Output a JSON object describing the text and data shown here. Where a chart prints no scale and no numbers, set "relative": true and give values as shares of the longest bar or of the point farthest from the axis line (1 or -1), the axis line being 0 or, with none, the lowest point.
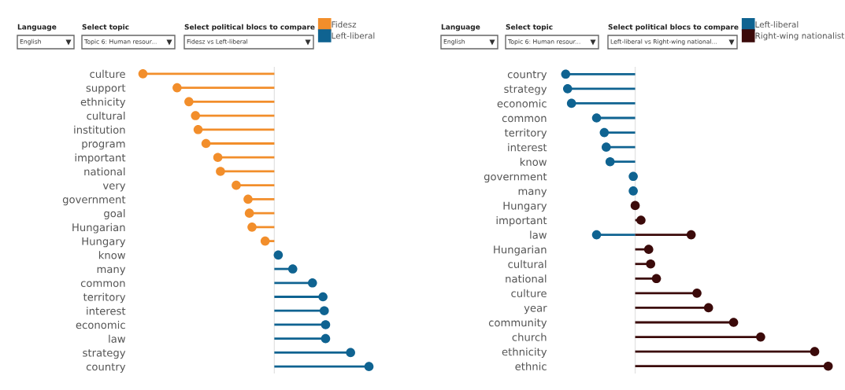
{
  "chart_data": [
    {
      "type": "lollipop",
      "relative": true,
      "orientation": "horizontal",
      "marker": "circle",
      "legend": "top right",
      "tick_labels": "y",
      "annotations": [
        "Language",
        "English",
        "Select topic",
        "Topic 6: Human resour...",
        "Select political blocs to compare",
        "Fidesz vs Left-liberal"
      ],
      "categories": [
        "culture",
        "support",
        "ethnicity",
        "cultural",
        "institution",
        "program",
        "important",
        "national",
        "very",
        "government",
        "goal",
        "Hungarian",
        "Hungary",
        "know",
        "many",
        "common",
        "territory",
        "interest",
        "economic",
        "law",
        "strategy",
        "country"
      ],
      "series": [
        {
          "name": "Fidesz",
          "color": "#f28e2b",
          "values": [
            -1,
            -0.74,
            -0.65,
            -0.6,
            -0.58,
            -0.52,
            -0.43,
            -0.41,
            -0.29,
            -0.2,
            -0.19,
            -0.17,
            -0.07,
            null,
            null,
            null,
            null,
            null,
            null,
            null,
            null,
            null
          ]
        },
        {
          "name": "Left-liberal",
          "color": "#0f6391",
          "values": [
            null,
            null,
            null,
            null,
            null,
            null,
            null,
            null,
            null,
            null,
            null,
            null,
            null,
            0.03,
            0.14,
            0.29,
            0.37,
            0.38,
            0.39,
            0.39,
            0.58,
            0.72
          ]
        }
      ]
    },
    {
      "type": "lollipop",
      "relative": true,
      "orientation": "horizontal",
      "marker": "circle",
      "legend": "top right",
      "tick_labels": "y",
      "annotations": [
        "Language",
        "English",
        "Select topic",
        "Topic 6: Human resour...",
        "Select political blocs to compare",
        "Left-liberal vs Right-wing national..."
      ],
      "categories": [
        "country",
        "strategy",
        "economic",
        "common",
        "territory",
        "interest",
        "know",
        "government",
        "many",
        "Hungary",
        "important",
        "law",
        "Hungarian",
        "cultural",
        "national",
        "culture",
        "year",
        "community",
        "church",
        "ethnicity",
        "ethnic"
      ],
      "series": [
        {
          "name": "Left-liberal",
          "color": "#0f6391",
          "values": [
            -0.36,
            -0.35,
            -0.33,
            -0.2,
            -0.16,
            -0.15,
            -0.13,
            -0.01,
            -0.01,
            null,
            null,
            -0.2,
            null,
            null,
            null,
            null,
            null,
            null,
            null,
            null,
            null
          ]
        },
        {
          "name": "Right-wing nationalist",
          "color": "#3b0a0a",
          "values": [
            null,
            null,
            null,
            null,
            null,
            null,
            null,
            null,
            null,
            0,
            0.03,
            0.29,
            0.07,
            0.08,
            0.11,
            0.32,
            0.38,
            0.51,
            0.65,
            0.93,
            1
          ]
        }
      ]
    }
  ]
}
